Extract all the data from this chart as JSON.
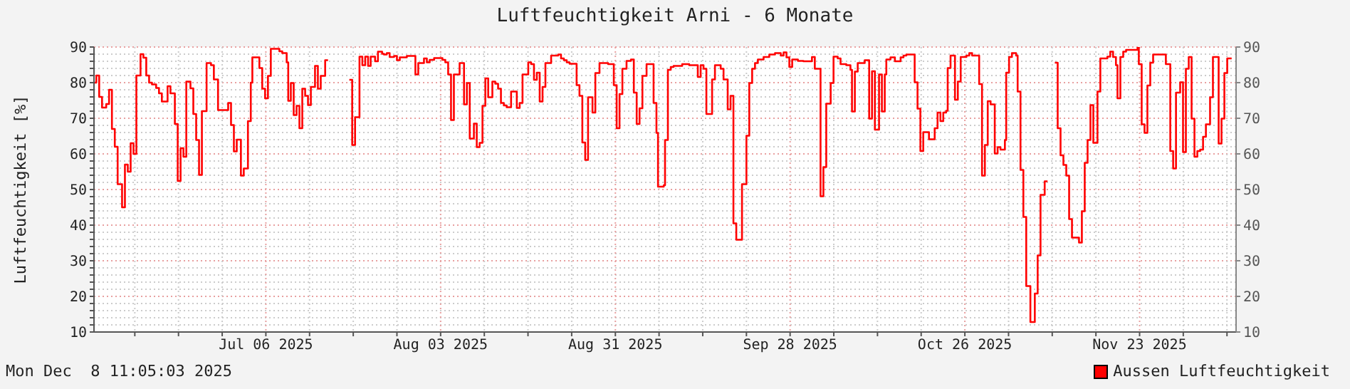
{
  "chart_data": {
    "type": "step",
    "title": "Luftfeuchtigkeit Arni - 6 Monate",
    "ylabel": "Luftfeuchtigkeit [%]",
    "annotations": [
      "Mon Dec  8 11:05:03 2025"
    ],
    "xlim": [
      "2025-06-08T11:00",
      "2025-12-08T11:00"
    ],
    "xticks": [
      {
        "value": "2025-06-15",
        "label": null
      },
      {
        "value": "2025-06-22",
        "label": null
      },
      {
        "value": "2025-06-29",
        "label": null
      },
      {
        "value": "2025-07-06",
        "label": "Jul 06 2025"
      },
      {
        "value": "2025-07-13",
        "label": null
      },
      {
        "value": "2025-07-20",
        "label": null
      },
      {
        "value": "2025-07-27",
        "label": null
      },
      {
        "value": "2025-08-03",
        "label": "Aug 03 2025"
      },
      {
        "value": "2025-08-10",
        "label": null
      },
      {
        "value": "2025-08-17",
        "label": null
      },
      {
        "value": "2025-08-24",
        "label": null
      },
      {
        "value": "2025-08-31",
        "label": "Aug 31 2025"
      },
      {
        "value": "2025-09-07",
        "label": null
      },
      {
        "value": "2025-09-14",
        "label": null
      },
      {
        "value": "2025-09-21",
        "label": null
      },
      {
        "value": "2025-09-28",
        "label": "Sep 28 2025"
      },
      {
        "value": "2025-10-05",
        "label": null
      },
      {
        "value": "2025-10-12",
        "label": null
      },
      {
        "value": "2025-10-19",
        "label": null
      },
      {
        "value": "2025-10-26",
        "label": "Oct 26 2025"
      },
      {
        "value": "2025-11-02",
        "label": null
      },
      {
        "value": "2025-11-09",
        "label": null
      },
      {
        "value": "2025-11-16",
        "label": null
      },
      {
        "value": "2025-11-23",
        "label": "Nov 23 2025"
      },
      {
        "value": "2025-11-30",
        "label": null
      },
      {
        "value": "2025-12-07",
        "label": null
      }
    ],
    "ylim": [
      10,
      90
    ],
    "yticks": [
      10,
      {
        "value": 12,
        "label": null
      },
      {
        "value": 14,
        "label": null
      },
      {
        "value": 16,
        "label": null
      },
      {
        "value": 18,
        "label": null
      },
      20,
      {
        "value": 22,
        "label": null
      },
      {
        "value": 24,
        "label": null
      },
      {
        "value": 26,
        "label": null
      },
      {
        "value": 28,
        "label": null
      },
      30,
      {
        "value": 32,
        "label": null
      },
      {
        "value": 34,
        "label": null
      },
      {
        "value": 36,
        "label": null
      },
      {
        "value": 38,
        "label": null
      },
      40,
      {
        "value": 42,
        "label": null
      },
      {
        "value": 44,
        "label": null
      },
      {
        "value": 46,
        "label": null
      },
      {
        "value": 48,
        "label": null
      },
      50,
      {
        "value": 52,
        "label": null
      },
      {
        "value": 54,
        "label": null
      },
      {
        "value": 56,
        "label": null
      },
      {
        "value": 58,
        "label": null
      },
      60,
      {
        "value": 62,
        "label": null
      },
      {
        "value": 64,
        "label": null
      },
      {
        "value": 66,
        "label": null
      },
      {
        "value": 68,
        "label": null
      },
      70,
      {
        "value": 72,
        "label": null
      },
      {
        "value": 74,
        "label": null
      },
      {
        "value": 76,
        "label": null
      },
      {
        "value": 78,
        "label": null
      },
      80,
      {
        "value": 82,
        "label": null
      },
      {
        "value": 84,
        "label": null
      },
      {
        "value": 86,
        "label": null
      },
      {
        "value": 88,
        "label": null
      },
      90
    ],
    "y2lim": [
      10,
      90
    ],
    "y2ticks": [
      10,
      20,
      30,
      40,
      50,
      60,
      70,
      80,
      90
    ],
    "grid": true,
    "legend": "bottom right",
    "marker": "none",
    "line_style": "solid",
    "series": [
      {
        "name": "Aussen Luftfeuchtigkeit",
        "color": "#ff0000",
        "x": [
          "2025-06-08T11:00",
          "2025-06-08T20:00",
          "2025-06-09T07:00",
          "2025-06-09T18:00",
          "2025-06-10T10:00",
          "2025-06-10T21:00",
          "2025-06-11T08:00",
          "2025-06-11T19:00",
          "2025-06-12T06:00",
          "2025-06-12T23:00",
          "2025-06-13T10:00",
          "2025-06-13T21:00",
          "2025-06-14T08:00",
          "2025-06-14T19:00",
          "2025-06-15T06:00",
          "2025-06-15T22:00",
          "2025-06-16T09:00",
          "2025-06-16T20:00",
          "2025-06-17T07:00",
          "2025-06-17T18:00",
          "2025-06-18T10:00",
          "2025-06-18T21:00",
          "2025-06-19T08:00",
          "2025-06-20T06:00",
          "2025-06-20T17:00",
          "2025-06-21T10:00",
          "2025-06-21T21:00",
          "2025-06-22T08:00",
          "2025-06-22T19:00",
          "2025-06-23T06:00",
          "2025-06-23T22:00",
          "2025-06-24T09:00",
          "2025-06-24T20:00",
          "2025-06-25T07:00",
          "2025-06-25T18:00",
          "2025-06-26T12:00",
          "2025-06-27T05:00",
          "2025-06-27T16:00",
          "2025-06-28T08:00",
          "2025-06-29T23:00",
          "2025-06-30T10:00",
          "2025-06-30T21:00",
          "2025-07-01T08:00",
          "2025-07-02T00:00",
          "2025-07-02T11:00",
          "2025-07-03T03:00",
          "2025-07-03T14:00",
          "2025-07-03T20:00",
          "2025-07-04T23:00",
          "2025-07-05T10:00",
          "2025-07-05T21:00",
          "2025-07-06T08:00",
          "2025-07-06T19:00",
          "2025-07-08T04:00",
          "2025-07-08T15:00",
          "2025-07-09T08:00",
          "2025-07-09T14:00",
          "2025-07-10T00:00",
          "2025-07-10T11:00",
          "2025-07-10T22:00",
          "2025-07-11T09:00",
          "2025-07-11T20:00",
          "2025-07-12T07:00",
          "2025-07-12T18:00",
          "2025-07-13T05:00",
          "2025-07-13T21:00",
          "2025-07-14T08:00",
          "2025-07-14T19:00",
          "2025-07-15T12:00",
          "2025-07-15T23:00",
          "2025-07-16T00:00",
          "2025-07-19T09:00",
          "2025-07-19T20:00",
          "2025-07-20T07:00",
          "2025-07-21T00:00",
          "2025-07-21T11:00",
          "2025-07-21T22:00",
          "2025-07-22T09:00",
          "2025-07-22T19:00",
          "2025-07-23T12:00",
          "2025-07-23T23:00",
          "2025-07-24T15:00",
          "2025-07-24T22:00",
          "2025-07-25T09:00",
          "2025-07-25T20:00",
          "2025-07-26T13:00",
          "2025-07-27T00:00",
          "2025-07-27T11:00",
          "2025-07-28T14:00",
          "2025-07-29T23:00",
          "2025-07-30T10:00",
          "2025-07-31T08:00",
          "2025-07-31T19:00",
          "2025-08-01T06:00",
          "2025-08-01T23:00",
          "2025-08-03T07:00",
          "2025-08-03T18:00",
          "2025-08-04T05:00",
          "2025-08-04T16:00",
          "2025-08-05T03:00",
          "2025-08-06T01:00",
          "2025-08-06T18:00",
          "2025-08-07T05:00",
          "2025-08-07T16:00",
          "2025-08-08T08:00",
          "2025-08-08T19:00",
          "2025-08-09T06:00",
          "2025-08-09T17:00",
          "2025-08-10T04:00",
          "2025-08-10T15:00",
          "2025-08-11T07:00",
          "2025-08-11T18:00",
          "2025-08-12T05:00",
          "2025-08-12T16:00",
          "2025-08-13T03:00",
          "2025-08-13T14:00",
          "2025-08-14T07:00",
          "2025-08-15T05:00",
          "2025-08-15T16:00",
          "2025-08-16T03:00",
          "2025-08-17T01:00",
          "2025-08-17T12:00",
          "2025-08-17T23:00",
          "2025-08-18T10:00",
          "2025-08-18T21:00",
          "2025-08-19T08:00",
          "2025-08-19T19:00",
          "2025-08-20T17:00",
          "2025-08-21T20:00",
          "2025-08-22T07:00",
          "2025-08-22T18:00",
          "2025-08-23T05:00",
          "2025-08-23T16:00",
          "2025-08-24T19:00",
          "2025-08-25T06:00",
          "2025-08-25T17:00",
          "2025-08-26T04:00",
          "2025-08-26T15:00",
          "2025-08-27T08:00",
          "2025-08-27T19:00",
          "2025-08-28T11:00",
          "2025-08-29T20:00",
          "2025-08-30T18:00",
          "2025-08-31T05:00",
          "2025-08-31T16:00",
          "2025-09-01T03:00",
          "2025-09-01T19:00",
          "2025-09-02T12:00",
          "2025-09-02T23:00",
          "2025-09-03T10:00",
          "2025-09-03T21:00",
          "2025-09-04T08:00",
          "2025-09-05T00:00",
          "2025-09-06T03:00",
          "2025-09-06T14:00",
          "2025-09-06T20:00",
          "2025-09-07T18:00",
          "2025-09-07T23:00",
          "2025-09-08T10:00",
          "2025-09-08T21:00",
          "2025-09-09T08:00",
          "2025-09-10T17:00",
          "2025-09-11T20:00",
          "2025-09-13T05:00",
          "2025-09-13T16:00",
          "2025-09-14T03:00",
          "2025-09-14T14:00",
          "2025-09-15T12:00",
          "2025-09-15T23:00",
          "2025-09-16T21:00",
          "2025-09-17T08:00",
          "2025-09-18T00:00",
          "2025-09-18T11:00",
          "2025-09-18T22:00",
          "2025-09-19T09:00",
          "2025-09-20T07:00",
          "2025-09-21T00:00",
          "2025-09-21T11:00",
          "2025-09-21T22:00",
          "2025-09-22T09:00",
          "2025-09-22T20:00",
          "2025-09-23T18:00",
          "2025-09-24T16:00",
          "2025-09-25T14:00",
          "2025-09-26T12:00",
          "2025-09-26T23:00",
          "2025-09-27T10:00",
          "2025-09-27T21:00",
          "2025-09-28T08:00",
          "2025-09-29T06:00",
          "2025-09-30T03:00",
          "2025-10-01T12:00",
          "2025-10-01T23:00",
          "2025-10-02T21:00",
          "2025-10-03T08:00",
          "2025-10-03T19:00",
          "2025-10-04T12:00",
          "2025-10-04T23:00",
          "2025-10-05T15:00",
          "2025-10-06T02:00",
          "2025-10-07T00:00",
          "2025-10-07T16:00",
          "2025-10-07T22:00",
          "2025-10-08T09:00",
          "2025-10-08T20:00",
          "2025-10-09T23:00",
          "2025-10-10T16:00",
          "2025-10-11T03:00",
          "2025-10-11T14:00",
          "2025-10-12T06:00",
          "2025-10-12T17:00",
          "2025-10-13T04:00",
          "2025-10-13T10:00",
          "2025-10-14T02:00",
          "2025-10-14T19:00",
          "2025-10-15T17:00",
          "2025-10-16T04:00",
          "2025-10-16T15:00",
          "2025-10-17T23:00",
          "2025-10-18T10:00",
          "2025-10-18T21:00",
          "2025-10-19T08:00",
          "2025-10-20T06:00",
          "2025-10-21T04:00",
          "2025-10-21T15:00",
          "2025-10-22T02:00",
          "2025-10-22T13:00",
          "2025-10-23T00:00",
          "2025-10-23T06:00",
          "2025-10-23T17:00",
          "2025-10-24T10:00",
          "2025-10-24T21:00",
          "2025-10-25T08:00",
          "2025-10-26T06:00",
          "2025-10-26T17:00",
          "2025-10-27T04:00",
          "2025-10-28T07:00",
          "2025-10-28T18:00",
          "2025-10-29T05:00",
          "2025-10-29T16:00",
          "2025-10-30T03:00",
          "2025-10-30T19:00",
          "2025-10-31T06:00",
          "2025-10-31T17:00",
          "2025-11-01T10:00",
          "2025-11-01T15:00",
          "2025-11-02T02:00",
          "2025-11-02T13:00",
          "2025-11-03T05:00",
          "2025-11-03T11:00",
          "2025-11-03T22:00",
          "2025-11-04T09:00",
          "2025-11-04T20:00",
          "2025-11-05T12:00",
          "2025-11-06T05:00",
          "2025-11-06T16:00",
          "2025-11-07T03:00",
          "2025-11-07T19:00",
          "2025-11-08T06:00",
          "2025-11-08T07:00",
          "2025-11-09T10:00",
          "2025-11-09T21:00",
          "2025-11-10T08:00",
          "2025-11-10T19:00",
          "2025-11-11T06:00",
          "2025-11-11T17:00",
          "2025-11-12T04:00",
          "2025-11-13T07:00",
          "2025-11-13T18:00",
          "2025-11-14T05:00",
          "2025-11-14T16:00",
          "2025-11-15T03:00",
          "2025-11-15T14:00",
          "2025-11-16T06:00",
          "2025-11-16T17:00",
          "2025-11-17T20:00",
          "2025-11-18T07:00",
          "2025-11-18T18:00",
          "2025-11-19T05:00",
          "2025-11-19T11:00",
          "2025-11-19T22:00",
          "2025-11-20T09:00",
          "2025-11-20T20:00",
          "2025-11-22T16:00",
          "2025-11-22T21:00",
          "2025-11-23T08:00",
          "2025-11-23T19:00",
          "2025-11-24T06:00",
          "2025-11-24T17:00",
          "2025-11-25T04:00",
          "2025-11-27T05:00",
          "2025-11-27T22:00",
          "2025-11-28T09:00",
          "2025-11-28T20:00",
          "2025-11-29T12:00",
          "2025-11-29T23:00",
          "2025-11-30T10:00",
          "2025-11-30T21:00",
          "2025-12-01T08:00",
          "2025-12-01T19:00",
          "2025-12-02T06:00",
          "2025-12-02T17:00",
          "2025-12-03T04:00",
          "2025-12-03T15:00",
          "2025-12-04T07:00",
          "2025-12-04T18:00",
          "2025-12-05T16:00",
          "2025-12-06T03:00",
          "2025-12-06T14:00",
          "2025-12-07T01:00",
          "2025-12-07T18:00"
        ],
        "values": [
          80,
          82,
          76,
          73,
          74,
          78,
          67,
          62,
          51.5,
          45,
          57,
          55,
          63,
          60,
          82,
          88,
          87,
          82,
          80,
          79.5,
          78.5,
          77,
          74.7,
          79,
          77,
          68.4,
          52.4,
          61.6,
          59.2,
          80.3,
          78.4,
          71.2,
          63.9,
          54.1,
          72,
          85.5,
          84.9,
          80.9,
          72.3,
          74.3,
          68.1,
          60.7,
          64,
          53.9,
          55.9,
          69.2,
          80,
          87.1,
          84.1,
          78.3,
          75.6,
          81.9,
          89.5,
          88.8,
          88.3,
          85.7,
          74.9,
          79.9,
          70.9,
          73.5,
          67.2,
          78.3,
          76.3,
          73.7,
          78.8,
          84.7,
          78.3,
          81.9,
          86.3,
          86.3,
          null,
          80.8,
          62.5,
          70.3,
          87.3,
          84.9,
          87.3,
          84.7,
          87.3,
          86,
          88.7,
          88.1,
          87.9,
          88.3,
          87.2,
          87.5,
          86.3,
          87.1,
          87.5,
          82.3,
          85.5,
          86.8,
          85.7,
          86.4,
          86.9,
          86.4,
          85.7,
          82.3,
          69.5,
          82.3,
          85.5,
          73.9,
          79.9,
          64.3,
          68.5,
          61.9,
          63.1,
          73.5,
          81.2,
          75.9,
          80.3,
          79.7,
          78.3,
          74.3,
          73.6,
          73.1,
          77.5,
          72.9,
          74.3,
          82.3,
          85.7,
          85.2,
          80.8,
          82.8,
          74.7,
          78.8,
          85.5,
          87.6,
          87.9,
          86.8,
          86.3,
          85.7,
          85.3,
          79.3,
          76.3,
          63.2,
          58.3,
          75.9,
          71.6,
          82.7,
          85.5,
          85.2,
          79.3,
          67.2,
          76.8,
          83.9,
          86.1,
          86.5,
          77.2,
          68.4,
          72.8,
          81.9,
          85.2,
          74.3,
          65.9,
          50.8,
          51.2,
          63.9,
          83.6,
          84.4,
          84.7,
          85.2,
          84.9,
          81.6,
          84.9,
          83.9,
          71.2,
          80.9,
          84.9,
          83.9,
          80.9,
          72.5,
          76.3,
          40.5,
          35.9,
          51.5,
          65.1,
          79.9,
          83.9,
          85.5,
          86.5,
          87.2,
          87.9,
          88.3,
          87.6,
          88.5,
          87.1,
          84.4,
          86.5,
          86.1,
          86,
          87.2,
          83.9,
          48.1,
          56.3,
          74.1,
          79.9,
          87.3,
          86.8,
          85.2,
          84.9,
          83.6,
          71.9,
          83.1,
          85.5,
          86.3,
          69.9,
          83.2,
          66.8,
          82.3,
          71.9,
          82.3,
          86.5,
          87.1,
          86,
          87.1,
          87.6,
          87.9,
          80.1,
          72.7,
          60.8,
          66.1,
          64.1,
          67.2,
          71.6,
          69.2,
          71.6,
          72.1,
          84.1,
          87.6,
          75.2,
          80.3,
          87.2,
          87.6,
          88.3,
          87.6,
          79.6,
          53.9,
          62.5,
          74.8,
          73.9,
          60.1,
          61.9,
          61.2,
          63.9,
          82.8,
          87.2,
          88.3,
          87.6,
          77.5,
          55.5,
          42.3,
          22.9,
          12.8,
          20.8,
          31.5,
          48.5,
          52.3,
          52.3,
          null,
          85.6,
          67.2,
          59.6,
          56.9,
          53.9,
          41.7,
          36.5,
          35.1,
          43.9,
          57.5,
          63.9,
          73.7,
          63.1,
          77.5,
          86.8,
          87.3,
          88.7,
          87.2,
          84.9,
          75.6,
          87.2,
          88.7,
          89.2,
          89.9,
          85.2,
          68.3,
          65.9,
          79.2,
          85.6,
          87.9,
          85.2,
          60.8,
          55.9,
          77.2,
          80.1,
          60.5,
          83.9,
          87.2,
          69.9,
          59.2,
          60.8,
          61.2,
          64.8,
          68.3,
          75.9,
          87.2,
          62.9,
          69.9,
          82.7,
          86.8,
          86.8
        ]
      }
    ]
  }
}
